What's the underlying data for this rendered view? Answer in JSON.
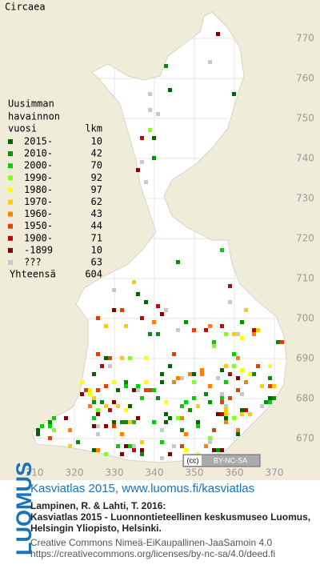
{
  "title": "Circaea",
  "legend": {
    "header": [
      "Uusimman",
      "havainnon",
      "vuosi"
    ],
    "count_header": "lkm",
    "items": [
      {
        "label": "2015-",
        "count": 10,
        "color": "#006400"
      },
      {
        "label": "2010-",
        "count": 42,
        "color": "#009000"
      },
      {
        "label": "2000-",
        "count": 70,
        "color": "#00d000"
      },
      {
        "label": "1990-",
        "count": 92,
        "color": "#80ff20"
      },
      {
        "label": "1980-",
        "count": 97,
        "color": "#ffff00"
      },
      {
        "label": "1970-",
        "count": 62,
        "color": "#ffcc00"
      },
      {
        "label": "1960-",
        "count": 43,
        "color": "#ff8000"
      },
      {
        "label": "1950-",
        "count": 44,
        "color": "#e04000"
      },
      {
        "label": "1900-",
        "count": 71,
        "color": "#cc0000"
      },
      {
        "label": "-1899",
        "count": 10,
        "color": "#800000"
      },
      {
        "label": "???",
        "count": 63,
        "color": "#c8c8c8"
      }
    ],
    "total_label": "Yhteensä",
    "total": 604
  },
  "map": {
    "y_labels": [
      770,
      760,
      750,
      740,
      730,
      720,
      710,
      700,
      690,
      680,
      670
    ],
    "x_labels": [
      310,
      320,
      330,
      340,
      350,
      360,
      370
    ]
  },
  "badge": "BY-NC-SA",
  "footer": {
    "logo": "LUOMUS",
    "heading": "Kasviatlas 2015, www.luomus.fi/kasviatlas",
    "citation": [
      "Lampinen, R. & Lahti, T. 2016:",
      "Kasviatlas 2015 - Luonnontieteellinen keskusmuseo Luomus,",
      "Helsingin Yliopisto, Helsinki."
    ],
    "license": [
      "Creative Commons Nimeä-EiKaupallinen-JaaSamoin 4.0",
      "https://creativecommons.org/licenses/by-nc-sa/4.0/deed.fi"
    ]
  }
}
